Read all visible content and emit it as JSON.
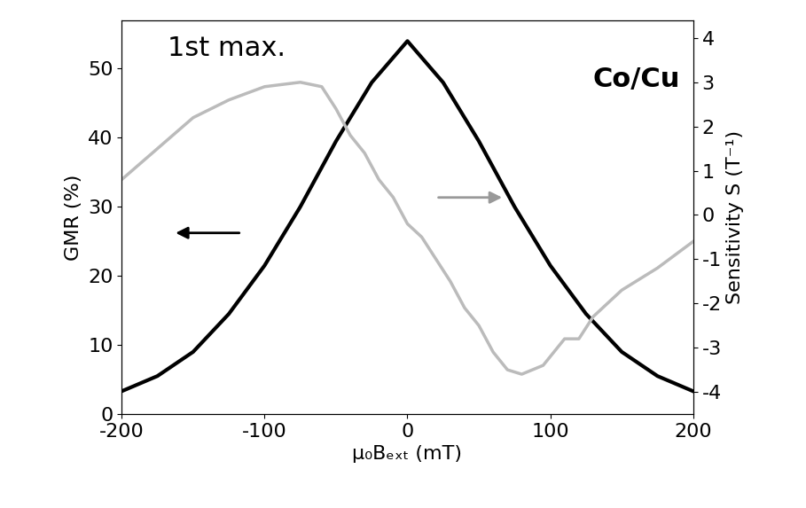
{
  "chart_data": {
    "type": "line",
    "annotations": [
      "1st max.",
      "Co/Cu"
    ],
    "x_label": "μ₀Bₑₓₜ (mT)",
    "y_label": "GMR (%)",
    "y2_label": "Sensitivity S (T⁻¹)",
    "xlim": [
      -200,
      200
    ],
    "xticks": [
      -200,
      -100,
      0,
      100,
      200
    ],
    "ylim": [
      0,
      57
    ],
    "yticks": [
      0,
      10,
      20,
      30,
      40,
      50
    ],
    "y2lim": [
      -4.5,
      4.4
    ],
    "y2ticks": [
      -4,
      -3,
      -2,
      -1,
      0,
      1,
      2,
      3,
      4
    ],
    "grid": false,
    "series": [
      {
        "color": "#000000",
        "axis": "y",
        "x": [
          -200,
          -175,
          -150,
          -125,
          -100,
          -75,
          -50,
          -25,
          0,
          25,
          50,
          75,
          100,
          125,
          150,
          175,
          200
        ],
        "values": [
          3.3,
          5.5,
          9,
          14.5,
          21.5,
          30,
          39.5,
          48,
          54,
          48,
          39.5,
          30,
          21.5,
          14.5,
          9,
          5.5,
          3.3
        ]
      },
      {
        "color": "#bbbbbb",
        "axis": "y2",
        "x": [
          -200,
          -175,
          -150,
          -125,
          -100,
          -75,
          -60,
          -50,
          -40,
          -30,
          -20,
          -10,
          0,
          10,
          20,
          30,
          40,
          50,
          60,
          70,
          80,
          95,
          105,
          110,
          120,
          130,
          150,
          175,
          200
        ],
        "values": [
          0.8,
          1.5,
          2.2,
          2.6,
          2.9,
          3.0,
          2.9,
          2.4,
          1.8,
          1.4,
          0.8,
          0.4,
          -0.2,
          -0.5,
          -1.0,
          -1.5,
          -2.1,
          -2.5,
          -3.1,
          -3.5,
          -3.6,
          -3.4,
          -3.0,
          -2.8,
          -2.8,
          -2.3,
          -1.7,
          -1.2,
          -0.6
        ]
      }
    ]
  }
}
